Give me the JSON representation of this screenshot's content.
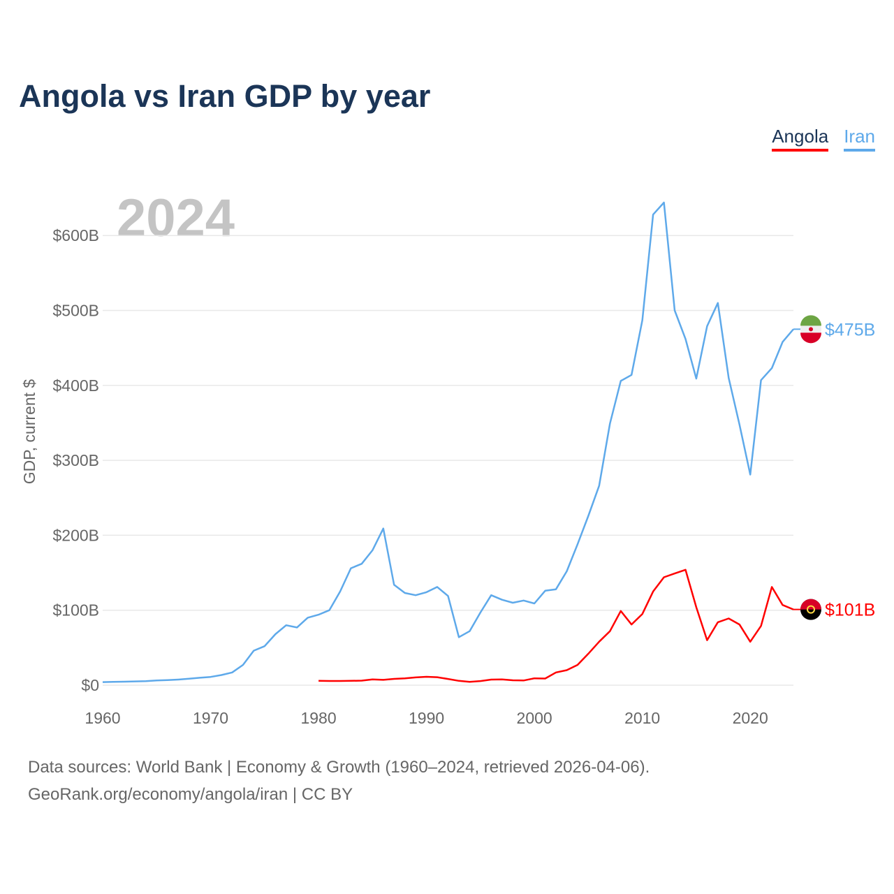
{
  "title": "Angola vs Iran GDP by year",
  "year_watermark": "2024",
  "footer": {
    "line1": "Data sources: World Bank | Economy & Growth (1960–2024, retrieved 2026-04-06).",
    "line2": "GeoRank.org/economy/angola/iran | CC BY"
  },
  "chart_data": {
    "type": "line",
    "title": "Angola vs Iran GDP by year",
    "xlabel": "",
    "ylabel": "GDP, current $",
    "xlim": [
      1960,
      2024
    ],
    "ylim": [
      0,
      650
    ],
    "x_ticks": [
      1960,
      1970,
      1980,
      1990,
      2000,
      2010,
      2020
    ],
    "y_ticks": [
      0,
      100,
      200,
      300,
      400,
      500,
      600
    ],
    "y_tick_labels": [
      "$0",
      "$100B",
      "$200B",
      "$300B",
      "$400B",
      "$500B",
      "$600B"
    ],
    "grid": true,
    "legend_position": "top-right",
    "series": [
      {
        "name": "Angola",
        "color": "#ff0000",
        "start_year": 1980,
        "end_label": "$101B",
        "flag": "angola-flag",
        "values": [
          5.9,
          5.6,
          5.6,
          5.8,
          6.1,
          7.6,
          7.1,
          8.4,
          9.0,
          10.3,
          11.2,
          10.6,
          8.3,
          5.8,
          4.4,
          5.5,
          7.5,
          7.7,
          6.5,
          6.2,
          9.1,
          8.9,
          17,
          20,
          27,
          42,
          58,
          72,
          99,
          81,
          95,
          125,
          144,
          149,
          154,
          104,
          60,
          84,
          89,
          81,
          58,
          79,
          131,
          107,
          101
        ]
      },
      {
        "name": "Iran",
        "color": "#5ea9ea",
        "start_year": 1960,
        "end_label": "$475B",
        "flag": "iran-flag",
        "values": [
          4.1,
          4.4,
          4.7,
          5.0,
          5.4,
          6.2,
          6.8,
          7.5,
          8.6,
          9.9,
          11,
          13.5,
          17,
          27,
          46,
          52,
          68,
          80,
          77,
          90,
          94,
          100,
          125,
          156,
          162,
          180,
          209,
          134,
          123,
          120,
          124,
          131,
          119,
          64,
          72,
          97,
          120,
          114,
          110,
          113,
          109,
          126,
          128,
          152,
          188,
          226,
          266,
          349,
          406,
          414,
          487,
          628,
          644,
          500,
          462,
          409,
          479,
          510,
          410,
          348,
          281,
          407,
          423,
          458,
          475
        ]
      }
    ]
  }
}
